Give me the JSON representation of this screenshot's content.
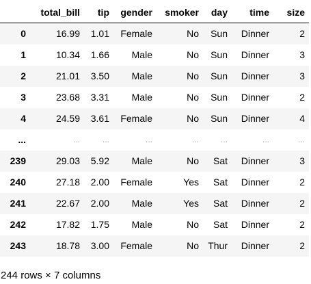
{
  "table": {
    "columns": [
      "total_bill",
      "tip",
      "gender",
      "smoker",
      "day",
      "time",
      "size"
    ],
    "rows": [
      {
        "index": "0",
        "cells": [
          "16.99",
          "1.01",
          "Female",
          "No",
          "Sun",
          "Dinner",
          "2"
        ]
      },
      {
        "index": "1",
        "cells": [
          "10.34",
          "1.66",
          "Male",
          "No",
          "Sun",
          "Dinner",
          "3"
        ]
      },
      {
        "index": "2",
        "cells": [
          "21.01",
          "3.50",
          "Male",
          "No",
          "Sun",
          "Dinner",
          "3"
        ]
      },
      {
        "index": "3",
        "cells": [
          "23.68",
          "3.31",
          "Male",
          "No",
          "Sun",
          "Dinner",
          "2"
        ]
      },
      {
        "index": "4",
        "cells": [
          "24.59",
          "3.61",
          "Female",
          "No",
          "Sun",
          "Dinner",
          "4"
        ]
      },
      {
        "index": "...",
        "cells": [
          "...",
          "...",
          "...",
          "...",
          "...",
          "...",
          "..."
        ]
      },
      {
        "index": "239",
        "cells": [
          "29.03",
          "5.92",
          "Male",
          "No",
          "Sat",
          "Dinner",
          "3"
        ]
      },
      {
        "index": "240",
        "cells": [
          "27.18",
          "2.00",
          "Female",
          "Yes",
          "Sat",
          "Dinner",
          "2"
        ]
      },
      {
        "index": "241",
        "cells": [
          "22.67",
          "2.00",
          "Male",
          "Yes",
          "Sat",
          "Dinner",
          "2"
        ]
      },
      {
        "index": "242",
        "cells": [
          "17.82",
          "1.75",
          "Male",
          "No",
          "Sat",
          "Dinner",
          "2"
        ]
      },
      {
        "index": "243",
        "cells": [
          "18.78",
          "3.00",
          "Female",
          "No",
          "Thur",
          "Dinner",
          "2"
        ]
      }
    ]
  },
  "shape_caption": "244 rows × 7 columns"
}
